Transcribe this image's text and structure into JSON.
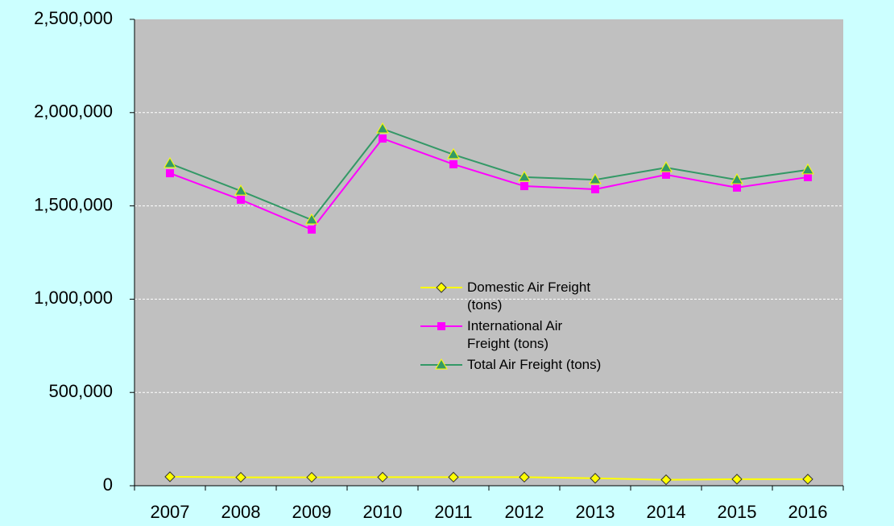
{
  "chart_data": {
    "type": "line",
    "categories": [
      "2007",
      "2008",
      "2009",
      "2010",
      "2011",
      "2012",
      "2013",
      "2014",
      "2015",
      "2016"
    ],
    "series": [
      {
        "name": "Domestic Air Freight (tons)",
        "color": "#ffff00",
        "marker": "diamond",
        "values": [
          48000,
          45000,
          45000,
          46000,
          46000,
          46000,
          40000,
          32000,
          35000,
          35000
        ]
      },
      {
        "name": "International Air Freight (tons)",
        "color": "#ff00ff",
        "marker": "square",
        "values": [
          1675000,
          1533000,
          1373000,
          1861000,
          1723000,
          1606000,
          1589000,
          1667000,
          1598000,
          1654000
        ]
      },
      {
        "name": "Total Air Freight (tons)",
        "color": "#339966",
        "marker": "triangle",
        "values": [
          1727000,
          1580000,
          1425000,
          1913000,
          1775000,
          1654000,
          1640000,
          1705000,
          1640000,
          1693000
        ]
      }
    ],
    "ylim": [
      0,
      2500000
    ],
    "yticks": [
      0,
      {
        "value": 500000,
        "label": "500,000"
      },
      {
        "value": 1000000,
        "label": "1,000,000"
      },
      {
        "value": 1500000,
        "label": "1,500,000"
      },
      {
        "value": 2000000,
        "label": "2,000,000"
      },
      {
        "value": 2500000,
        "label": "2,500,000"
      }
    ],
    "grid": true
  }
}
